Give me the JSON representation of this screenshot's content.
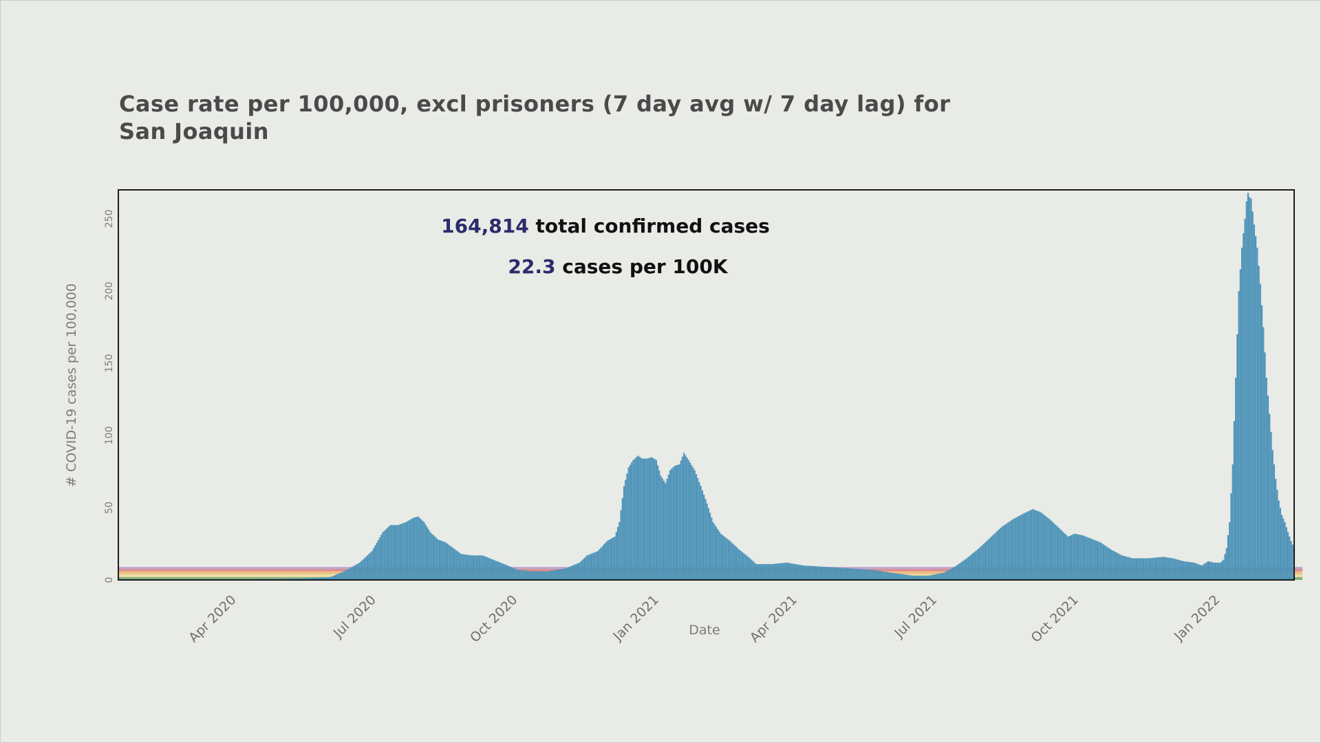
{
  "chart_data": {
    "type": "bar",
    "title_line1": "Case rate per 100,000, excl prisoners (7 day avg w/ 7 day lag) for",
    "title_line2": "San Joaquin",
    "xlabel": "Date",
    "ylabel": "# COVID-19 cases per 100,000",
    "ylim": [
      0,
      270
    ],
    "y_ticks": [
      0,
      50,
      100,
      150,
      200,
      250
    ],
    "x_ticks": [
      {
        "label": "Apr 2020",
        "date": "2020-04-01"
      },
      {
        "label": "Jul 2020",
        "date": "2020-07-01"
      },
      {
        "label": "Oct 2020",
        "date": "2020-10-01"
      },
      {
        "label": "Jan 2021",
        "date": "2021-01-01"
      },
      {
        "label": "Apr 2021",
        "date": "2021-04-01"
      },
      {
        "label": "Jul 2021",
        "date": "2021-07-01"
      },
      {
        "label": "Oct 2021",
        "date": "2021-10-01"
      },
      {
        "label": "Jan 2022",
        "date": "2022-01-01"
      }
    ],
    "x_range": [
      "2020-01-15",
      "2022-02-18"
    ],
    "grid": false,
    "bar_color": "#4d93b8",
    "series_points": [
      [
        "2020-01-15",
        0
      ],
      [
        "2020-03-01",
        0
      ],
      [
        "2020-04-15",
        0.5
      ],
      [
        "2020-05-15",
        1
      ],
      [
        "2020-06-01",
        2
      ],
      [
        "2020-06-10",
        6
      ],
      [
        "2020-06-20",
        12
      ],
      [
        "2020-06-28",
        20
      ],
      [
        "2020-07-05",
        33
      ],
      [
        "2020-07-10",
        38
      ],
      [
        "2020-07-15",
        38
      ],
      [
        "2020-07-20",
        40
      ],
      [
        "2020-07-25",
        43
      ],
      [
        "2020-07-28",
        44
      ],
      [
        "2020-08-01",
        40
      ],
      [
        "2020-08-05",
        33
      ],
      [
        "2020-08-10",
        28
      ],
      [
        "2020-08-15",
        26
      ],
      [
        "2020-08-20",
        22
      ],
      [
        "2020-08-25",
        18
      ],
      [
        "2020-09-01",
        17
      ],
      [
        "2020-09-08",
        17
      ],
      [
        "2020-09-15",
        14
      ],
      [
        "2020-09-22",
        11
      ],
      [
        "2020-10-01",
        7
      ],
      [
        "2020-10-10",
        6
      ],
      [
        "2020-10-20",
        6
      ],
      [
        "2020-11-01",
        8
      ],
      [
        "2020-11-10",
        12
      ],
      [
        "2020-11-15",
        17
      ],
      [
        "2020-11-22",
        20
      ],
      [
        "2020-11-28",
        27
      ],
      [
        "2020-12-03",
        30
      ],
      [
        "2020-12-06",
        40
      ],
      [
        "2020-12-09",
        65
      ],
      [
        "2020-12-12",
        78
      ],
      [
        "2020-12-15",
        83
      ],
      [
        "2020-12-18",
        86
      ],
      [
        "2020-12-21",
        84
      ],
      [
        "2020-12-24",
        84
      ],
      [
        "2020-12-27",
        85
      ],
      [
        "2020-12-30",
        83
      ],
      [
        "2021-01-02",
        72
      ],
      [
        "2021-01-05",
        67
      ],
      [
        "2021-01-08",
        76
      ],
      [
        "2021-01-11",
        79
      ],
      [
        "2021-01-14",
        80
      ],
      [
        "2021-01-17",
        88
      ],
      [
        "2021-01-20",
        83
      ],
      [
        "2021-01-24",
        76
      ],
      [
        "2021-01-28",
        65
      ],
      [
        "2021-02-01",
        53
      ],
      [
        "2021-02-05",
        40
      ],
      [
        "2021-02-10",
        32
      ],
      [
        "2021-02-16",
        27
      ],
      [
        "2021-02-22",
        21
      ],
      [
        "2021-03-01",
        15
      ],
      [
        "2021-03-05",
        11
      ],
      [
        "2021-03-15",
        11
      ],
      [
        "2021-03-25",
        12
      ],
      [
        "2021-04-05",
        10
      ],
      [
        "2021-04-20",
        9
      ],
      [
        "2021-05-05",
        8
      ],
      [
        "2021-05-20",
        7
      ],
      [
        "2021-06-01",
        5
      ],
      [
        "2021-06-15",
        3
      ],
      [
        "2021-06-25",
        3
      ],
      [
        "2021-07-05",
        5
      ],
      [
        "2021-07-12",
        9
      ],
      [
        "2021-07-20",
        15
      ],
      [
        "2021-07-28",
        22
      ],
      [
        "2021-08-05",
        30
      ],
      [
        "2021-08-12",
        37
      ],
      [
        "2021-08-19",
        42
      ],
      [
        "2021-08-26",
        46
      ],
      [
        "2021-09-01",
        49
      ],
      [
        "2021-09-06",
        47
      ],
      [
        "2021-09-12",
        42
      ],
      [
        "2021-09-18",
        36
      ],
      [
        "2021-09-24",
        30
      ],
      [
        "2021-09-28",
        32
      ],
      [
        "2021-10-03",
        31
      ],
      [
        "2021-10-08",
        29
      ],
      [
        "2021-10-15",
        26
      ],
      [
        "2021-10-22",
        21
      ],
      [
        "2021-10-29",
        17
      ],
      [
        "2021-11-05",
        15
      ],
      [
        "2021-11-15",
        15
      ],
      [
        "2021-11-25",
        16
      ],
      [
        "2021-12-01",
        15
      ],
      [
        "2021-12-08",
        13
      ],
      [
        "2021-12-15",
        12
      ],
      [
        "2021-12-20",
        10
      ],
      [
        "2021-12-24",
        13
      ],
      [
        "2021-12-28",
        12
      ],
      [
        "2022-01-01",
        12
      ],
      [
        "2022-01-03",
        14
      ],
      [
        "2022-01-05",
        22
      ],
      [
        "2022-01-07",
        40
      ],
      [
        "2022-01-09",
        80
      ],
      [
        "2022-01-11",
        140
      ],
      [
        "2022-01-13",
        200
      ],
      [
        "2022-01-15",
        230
      ],
      [
        "2022-01-17",
        250
      ],
      [
        "2022-01-18",
        262
      ],
      [
        "2022-01-19",
        268
      ],
      [
        "2022-01-20",
        265
      ],
      [
        "2022-01-21",
        264
      ],
      [
        "2022-01-23",
        246
      ],
      [
        "2022-01-25",
        230
      ],
      [
        "2022-01-27",
        205
      ],
      [
        "2022-01-29",
        175
      ],
      [
        "2022-01-31",
        140
      ],
      [
        "2022-02-02",
        115
      ],
      [
        "2022-02-04",
        90
      ],
      [
        "2022-02-06",
        70
      ],
      [
        "2022-02-08",
        55
      ],
      [
        "2022-02-10",
        45
      ],
      [
        "2022-02-12",
        40
      ],
      [
        "2022-02-14",
        33
      ],
      [
        "2022-02-16",
        27
      ],
      [
        "2022-02-18",
        22
      ]
    ],
    "reference_bands": [
      {
        "color": "#2e7d32",
        "from": 0,
        "to": 2
      },
      {
        "color": "#f1d46a",
        "from": 2,
        "to": 4
      },
      {
        "color": "#f09a3a",
        "from": 4,
        "to": 6
      },
      {
        "color": "#d93b3b",
        "from": 6,
        "to": 7.5
      },
      {
        "color": "#9f6bb8",
        "from": 7.5,
        "to": 9
      }
    ],
    "annotation": {
      "total_value": "164,814",
      "total_text": " total confirmed cases",
      "rate_value": "22.3",
      "rate_text": " cases per 100K",
      "value_color": "#2b2b6b",
      "text_color": "#111111"
    }
  }
}
